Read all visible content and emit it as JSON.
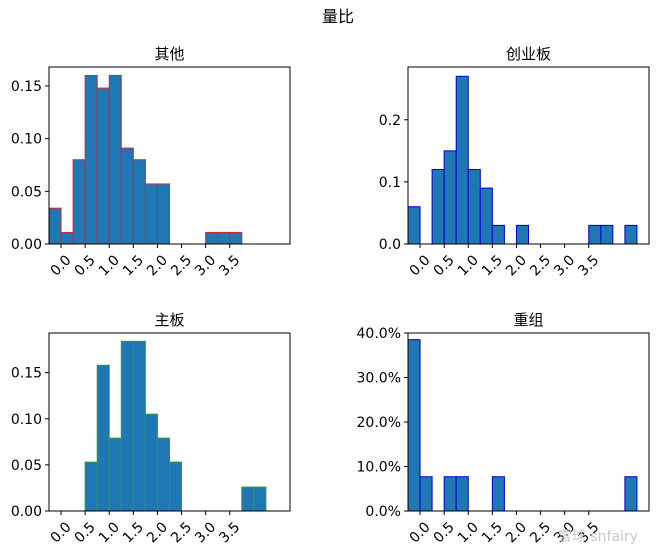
{
  "figure_title": "量比",
  "watermark": "雪球 snfairy",
  "chart_data": [
    {
      "type": "bar",
      "title": "其他",
      "bin_width": 0.25,
      "x": [
        -0.125,
        0.125,
        0.375,
        0.625,
        0.875,
        1.125,
        1.375,
        1.625,
        1.875,
        2.125,
        3.125,
        3.375,
        3.625
      ],
      "values": [
        0.034,
        0.011,
        0.08,
        0.16,
        0.148,
        0.16,
        0.091,
        0.08,
        0.057,
        0.057,
        0.011,
        0.011,
        0.011
      ],
      "xlim": [
        -0.25,
        4.75
      ],
      "ylim": [
        0,
        0.168
      ],
      "xticks": [
        0,
        0.5,
        1.0,
        1.5,
        2.0,
        2.5,
        3.0,
        3.5
      ],
      "xtick_labels": [
        "0.0",
        "0.5",
        "1.0",
        "1.5",
        "2.0",
        "2.5",
        "3.0",
        "3.5"
      ],
      "yticks": [
        0,
        0.05,
        0.1,
        0.15
      ],
      "ytick_labels": [
        "0.00",
        "0.05",
        "0.10",
        "0.15"
      ],
      "bar_color": "#1f77b4",
      "edge_color": "#d62728"
    },
    {
      "type": "bar",
      "title": "创业板",
      "bin_width": 0.25,
      "x": [
        -0.125,
        0.375,
        0.625,
        0.875,
        1.125,
        1.375,
        1.625,
        2.125,
        3.625,
        3.875,
        4.375
      ],
      "values": [
        0.06,
        0.12,
        0.15,
        0.27,
        0.12,
        0.09,
        0.03,
        0.03,
        0.03,
        0.03,
        0.03
      ],
      "xlim": [
        -0.25,
        4.75
      ],
      "ylim": [
        0,
        0.285
      ],
      "xticks": [
        0,
        0.5,
        1.0,
        1.5,
        2.0,
        2.5,
        3.0,
        3.5
      ],
      "xtick_labels": [
        "0.0",
        "0.5",
        "1.0",
        "1.5",
        "2.0",
        "2.5",
        "3.0",
        "3.5"
      ],
      "yticks": [
        0,
        0.1,
        0.2
      ],
      "ytick_labels": [
        "0.0",
        "0.1",
        "0.2"
      ],
      "bar_color": "#1f77b4",
      "edge_color": "#0000cc"
    },
    {
      "type": "bar",
      "title": "主板",
      "bin_width": 0.25,
      "x": [
        0.625,
        0.875,
        1.125,
        1.375,
        1.625,
        1.875,
        2.125,
        2.375,
        3.875,
        4.125
      ],
      "values": [
        0.053,
        0.158,
        0.079,
        0.184,
        0.184,
        0.105,
        0.079,
        0.053,
        0.026,
        0.026
      ],
      "xlim": [
        -0.25,
        4.75
      ],
      "ylim": [
        0,
        0.193
      ],
      "xticks": [
        0,
        0.5,
        1.0,
        1.5,
        2.0,
        2.5,
        3.0,
        3.5
      ],
      "xtick_labels": [
        "0.0",
        "0.5",
        "1.0",
        "1.5",
        "2.0",
        "2.5",
        "3.0",
        "3.5"
      ],
      "yticks": [
        0,
        0.05,
        0.1,
        0.15
      ],
      "ytick_labels": [
        "0.00",
        "0.05",
        "0.10",
        "0.15"
      ],
      "bar_color": "#1f77b4",
      "edge_color": "#2ca02c"
    },
    {
      "type": "bar",
      "title": "重组",
      "bin_width": 0.25,
      "x": [
        -0.125,
        0.125,
        0.625,
        0.875,
        1.625,
        4.375
      ],
      "values": [
        0.385,
        0.077,
        0.077,
        0.077,
        0.077,
        0.077
      ],
      "xlim": [
        -0.25,
        4.75
      ],
      "ylim": [
        0,
        0.4
      ],
      "xticks": [
        0,
        0.5,
        1.0,
        1.5,
        2.0,
        2.5,
        3.0,
        3.5
      ],
      "xtick_labels": [
        "0.0",
        "0.5",
        "1.0",
        "1.5",
        "2.0",
        "2.5",
        "3.0",
        "3.5"
      ],
      "yticks": [
        0,
        0.1,
        0.2,
        0.3,
        0.4
      ],
      "ytick_labels": [
        "0.0%",
        "10.0%",
        "20.0%",
        "30.0%",
        "40.0%"
      ],
      "bar_color": "#1f77b4",
      "edge_color": "#0000cc"
    }
  ]
}
